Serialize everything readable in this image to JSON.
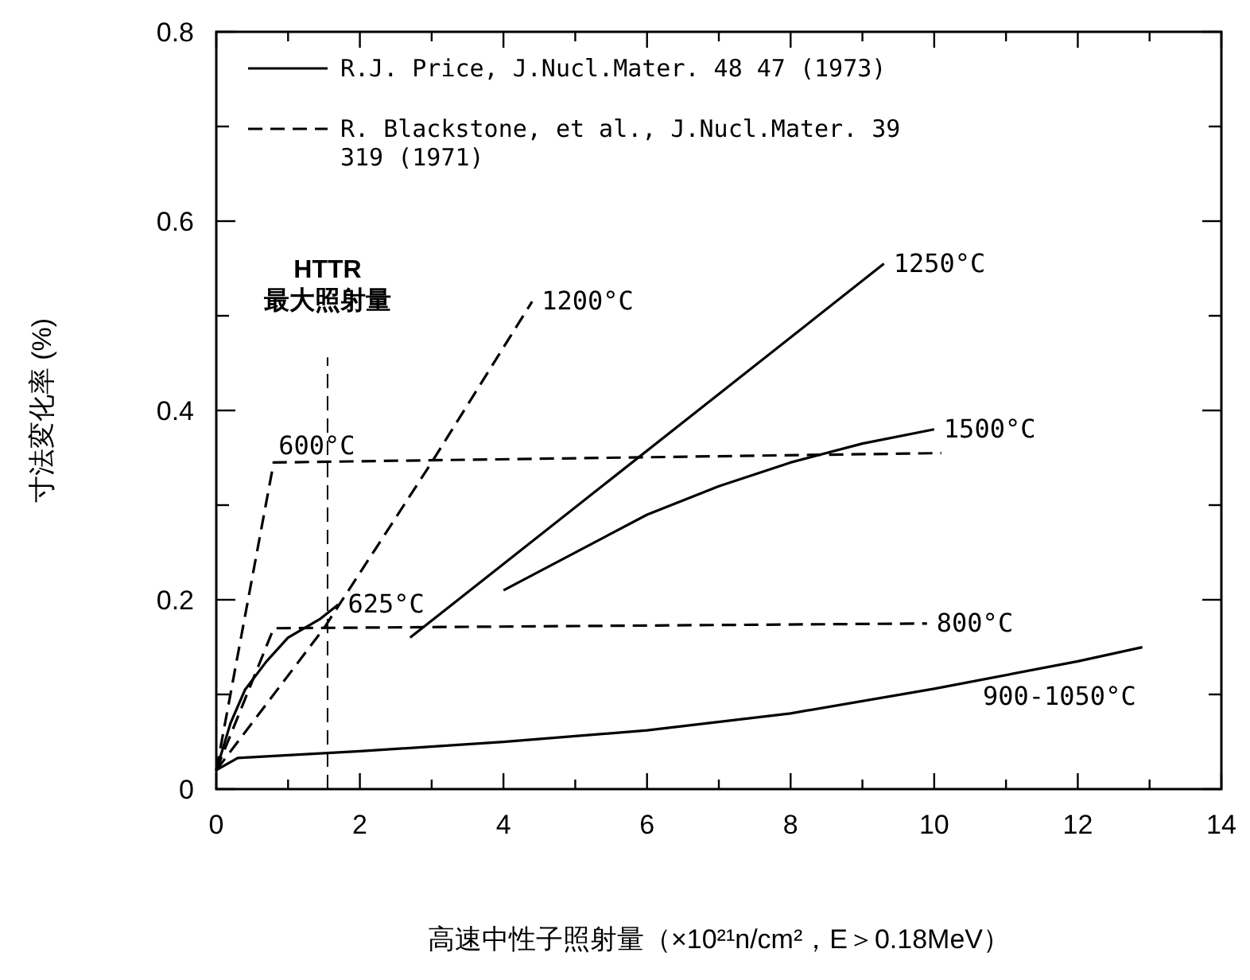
{
  "chart_data": {
    "type": "line",
    "xlabel": "高速中性子照射量（×10²¹n/cm²，E＞0.18MeV）",
    "ylabel": "寸法変化率 (%)",
    "xlim": [
      0,
      14
    ],
    "ylim": [
      0,
      0.8
    ],
    "xticks": [
      0,
      {
        "value": 1,
        "label": null
      },
      2,
      {
        "value": 3,
        "label": null
      },
      4,
      {
        "value": 5,
        "label": null
      },
      6,
      {
        "value": 7,
        "label": null
      },
      8,
      {
        "value": 9,
        "label": null
      },
      10,
      {
        "value": 11,
        "label": null
      },
      12,
      {
        "value": 13,
        "label": null
      },
      14
    ],
    "yticks": [
      0,
      {
        "value": 0.1,
        "label": null
      },
      0.2,
      {
        "value": 0.3,
        "label": null
      },
      0.4,
      {
        "value": 0.5,
        "label": null
      },
      0.6,
      {
        "value": 0.7,
        "label": null
      },
      0.8
    ],
    "grid": false,
    "series": [
      {
        "name": "1250°C",
        "color": "#000000",
        "line_style": "solid",
        "x": [
          2.7,
          9.3
        ],
        "values": [
          0.16,
          0.555
        ]
      },
      {
        "name": "1500°C",
        "color": "#000000",
        "line_style": "solid",
        "x": [
          4.0,
          5.0,
          6.0,
          7.0,
          8.0,
          9.0,
          10.0
        ],
        "values": [
          0.21,
          0.25,
          0.29,
          0.32,
          0.345,
          0.365,
          0.38
        ]
      },
      {
        "name": "625°C",
        "color": "#000000",
        "line_style": "solid",
        "x": [
          0,
          0.2,
          0.4,
          0.7,
          1.0,
          1.45,
          1.7
        ],
        "values": [
          0.02,
          0.07,
          0.105,
          0.135,
          0.16,
          0.18,
          0.195
        ]
      },
      {
        "name": "900-1050°C",
        "color": "#000000",
        "line_style": "solid",
        "x": [
          0,
          0.3,
          2,
          4,
          6,
          8,
          10,
          12,
          12.9
        ],
        "values": [
          0.02,
          0.033,
          0.04,
          0.05,
          0.062,
          0.08,
          0.106,
          0.135,
          0.15
        ]
      },
      {
        "name": "600°C",
        "color": "#000000",
        "line_style": "dashed",
        "x": [
          0,
          0.8,
          10.1
        ],
        "values": [
          0.02,
          0.345,
          0.355
        ]
      },
      {
        "name": "800°C",
        "color": "#000000",
        "line_style": "dashed",
        "x": [
          0,
          0.8,
          9.9
        ],
        "values": [
          0.02,
          0.17,
          0.175
        ]
      },
      {
        "name": "1200°C",
        "color": "#000000",
        "line_style": "dashed",
        "x": [
          0,
          1.5,
          3.0,
          4.4
        ],
        "values": [
          0.02,
          0.17,
          0.345,
          0.515
        ]
      }
    ],
    "ref_lines": [
      {
        "axis": "x",
        "value": 1.55,
        "label": "HTTR\n最大照射量",
        "line_style": "dashed"
      }
    ],
    "annotations": [
      "R.J. Price, J.Nucl.Mater. 48 47 (1973)",
      "R. Blackstone, et al., J.Nucl.Mater. 39\n319 (1971)"
    ]
  }
}
